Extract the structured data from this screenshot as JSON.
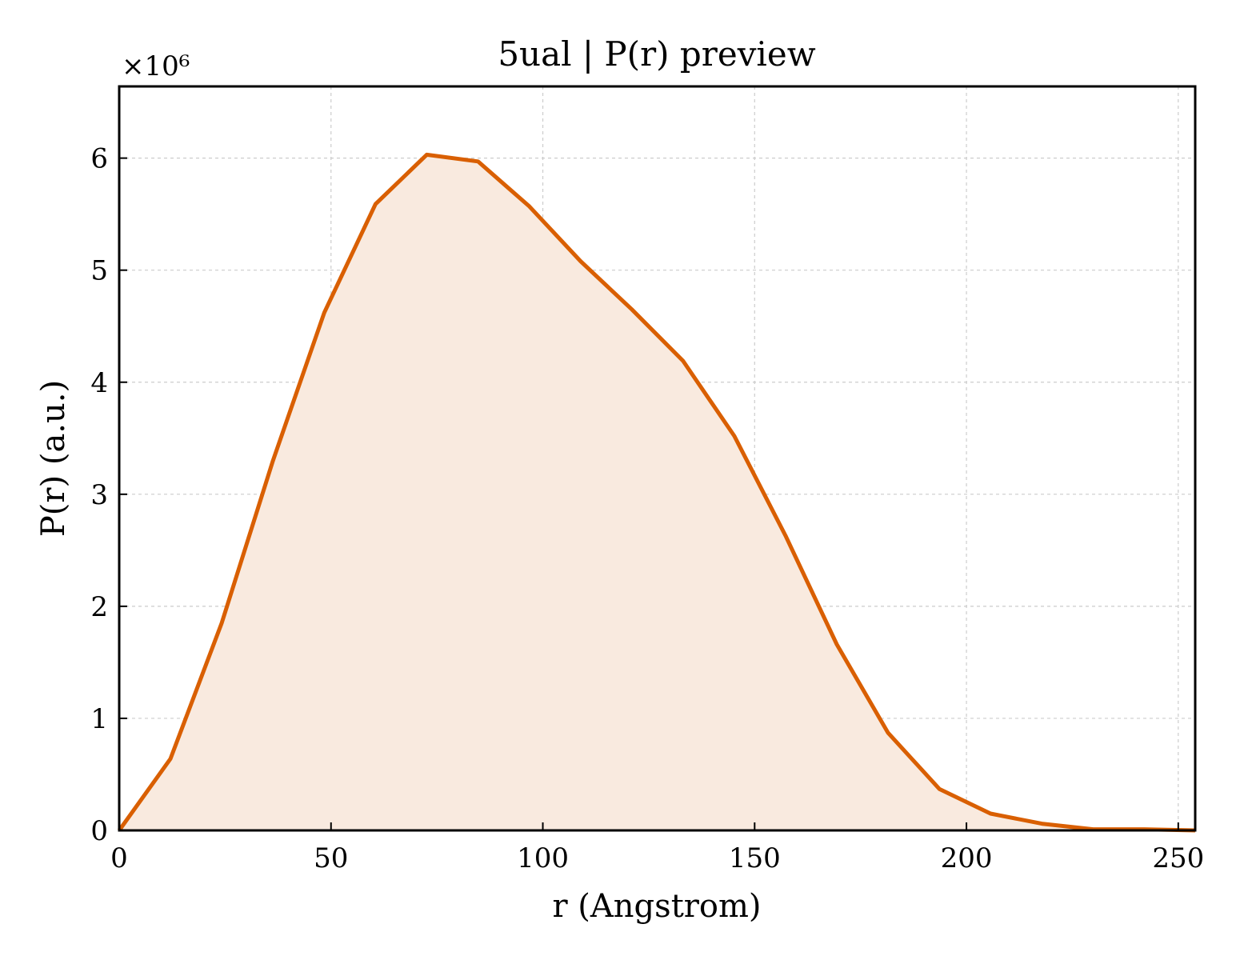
{
  "chart_data": {
    "type": "area",
    "title": "5ual | P(r) preview",
    "xlabel": "r (Angstrom)",
    "ylabel": "P(r) (a.u.)",
    "y_multiplier_text": "×10⁶",
    "xlim": [
      0,
      254
    ],
    "ylim": [
      0,
      6.64
    ],
    "x_ticks": [
      0,
      50,
      100,
      150,
      200,
      250
    ],
    "y_ticks": [
      0,
      1,
      2,
      3,
      4,
      5,
      6
    ],
    "grid": true,
    "line_color": "#d95f02",
    "fill_color": "#f9eadf",
    "series": [
      {
        "x": [
          0,
          12.1,
          24.2,
          36.3,
          48.4,
          60.5,
          72.6,
          84.7,
          96.8,
          108.9,
          121.0,
          133.1,
          145.2,
          157.3,
          169.4,
          181.5,
          193.6,
          205.7,
          217.8,
          229.9,
          242.0,
          254.0
        ],
        "y": [
          0.0,
          0.64,
          1.85,
          3.3,
          4.62,
          5.59,
          6.03,
          5.97,
          5.57,
          5.08,
          4.65,
          4.19,
          3.52,
          2.63,
          1.66,
          0.87,
          0.37,
          0.15,
          0.06,
          0.01,
          0.01,
          0.0
        ]
      }
    ]
  }
}
